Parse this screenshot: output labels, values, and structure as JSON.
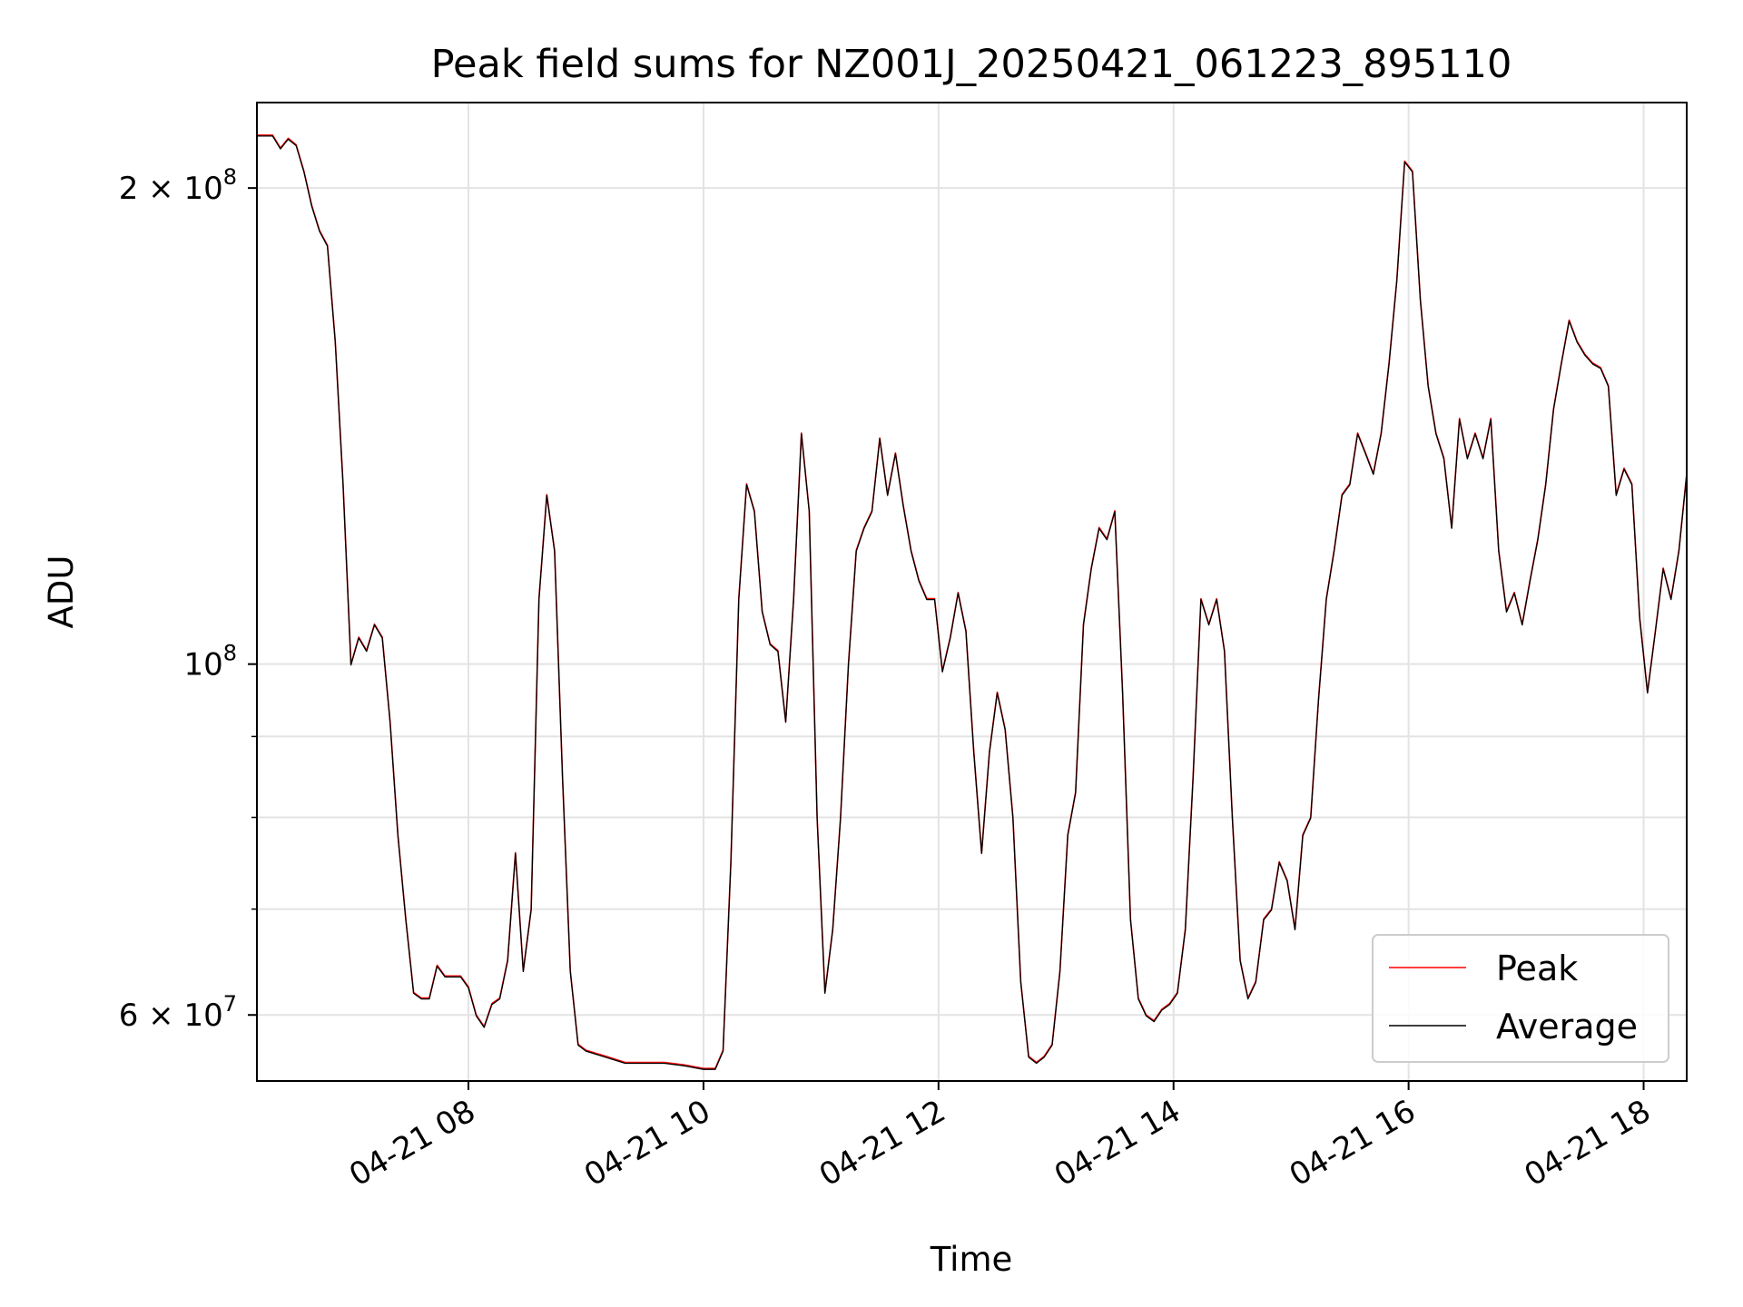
{
  "chart_data": {
    "type": "line",
    "title": "Peak field sums for NZ001J_20250421_061223_895110",
    "xlabel": "Time",
    "ylabel": "ADU",
    "y_scale": "log",
    "ylim": [
      54500000,
      226500000
    ],
    "xlim": [
      "2025-04-21 06:12",
      "2025-04-21 18:22"
    ],
    "x_ticks": [
      "04-21 08",
      "04-21 10",
      "04-21 12",
      "04-21 14",
      "04-21 16",
      "04-21 18"
    ],
    "y_ticks": [
      {
        "value": 60000000,
        "label_base": "6 × 10",
        "label_exp": "7"
      },
      {
        "value": 100000000,
        "label_base": "10",
        "label_exp": "8"
      },
      {
        "value": 200000000,
        "label_base": "2 × 10",
        "label_exp": "8"
      }
    ],
    "y_minor_ticks": [
      70000000,
      80000000,
      90000000
    ],
    "grid": true,
    "legend_position": "bottom-right",
    "colors": {
      "peak": "#ff0000",
      "average": "#000000"
    },
    "series": [
      {
        "name": "Peak",
        "color": "#ff0000",
        "points": [
          [
            "06:12",
            216000000
          ],
          [
            "06:20",
            216000000
          ],
          [
            "06:24",
            212000000
          ],
          [
            "06:28",
            215000000
          ],
          [
            "06:32",
            213000000
          ],
          [
            "06:36",
            205000000
          ],
          [
            "06:40",
            195000000
          ],
          [
            "06:44",
            188000000
          ],
          [
            "06:48",
            184000000
          ],
          [
            "06:52",
            160000000
          ],
          [
            "06:56",
            130000000
          ],
          [
            "07:00",
            100000000
          ],
          [
            "07:04",
            104000000
          ],
          [
            "07:08",
            102000000
          ],
          [
            "07:12",
            106000000
          ],
          [
            "07:16",
            104000000
          ],
          [
            "07:20",
            92000000
          ],
          [
            "07:24",
            78000000
          ],
          [
            "07:28",
            69000000
          ],
          [
            "07:32",
            62000000
          ],
          [
            "07:36",
            61500000
          ],
          [
            "07:40",
            61500000
          ],
          [
            "07:44",
            64500000
          ],
          [
            "07:48",
            63500000
          ],
          [
            "07:52",
            63500000
          ],
          [
            "07:56",
            63500000
          ],
          [
            "08:00",
            62500000
          ],
          [
            "08:04",
            60000000
          ],
          [
            "08:08",
            59000000
          ],
          [
            "08:12",
            61000000
          ],
          [
            "08:16",
            61500000
          ],
          [
            "08:20",
            65000000
          ],
          [
            "08:24",
            76000000
          ],
          [
            "08:28",
            64000000
          ],
          [
            "08:32",
            70000000
          ],
          [
            "08:36",
            110000000
          ],
          [
            "08:40",
            128000000
          ],
          [
            "08:44",
            118000000
          ],
          [
            "08:48",
            85000000
          ],
          [
            "08:52",
            64000000
          ],
          [
            "08:56",
            57500000
          ],
          [
            "09:00",
            57000000
          ],
          [
            "09:10",
            56500000
          ],
          [
            "09:20",
            56000000
          ],
          [
            "09:30",
            56000000
          ],
          [
            "09:40",
            56000000
          ],
          [
            "09:50",
            55800000
          ],
          [
            "10:00",
            55500000
          ],
          [
            "10:06",
            55500000
          ],
          [
            "10:10",
            57000000
          ],
          [
            "10:14",
            75000000
          ],
          [
            "10:18",
            110000000
          ],
          [
            "10:22",
            130000000
          ],
          [
            "10:26",
            125000000
          ],
          [
            "10:30",
            108000000
          ],
          [
            "10:34",
            103000000
          ],
          [
            "10:38",
            102000000
          ],
          [
            "10:42",
            92000000
          ],
          [
            "10:46",
            110000000
          ],
          [
            "10:50",
            140000000
          ],
          [
            "10:54",
            125000000
          ],
          [
            "10:58",
            80000000
          ],
          [
            "11:02",
            62000000
          ],
          [
            "11:06",
            68000000
          ],
          [
            "11:10",
            80000000
          ],
          [
            "11:14",
            100000000
          ],
          [
            "11:18",
            118000000
          ],
          [
            "11:22",
            122000000
          ],
          [
            "11:26",
            125000000
          ],
          [
            "11:30",
            139000000
          ],
          [
            "11:34",
            128000000
          ],
          [
            "11:38",
            136000000
          ],
          [
            "11:42",
            126000000
          ],
          [
            "11:46",
            118000000
          ],
          [
            "11:50",
            113000000
          ],
          [
            "11:54",
            110000000
          ],
          [
            "11:58",
            110000000
          ],
          [
            "12:02",
            99000000
          ],
          [
            "12:06",
            104000000
          ],
          [
            "12:10",
            111000000
          ],
          [
            "12:14",
            105000000
          ],
          [
            "12:18",
            88000000
          ],
          [
            "12:22",
            76000000
          ],
          [
            "12:26",
            88000000
          ],
          [
            "12:30",
            96000000
          ],
          [
            "12:34",
            91000000
          ],
          [
            "12:38",
            80000000
          ],
          [
            "12:42",
            63000000
          ],
          [
            "12:46",
            56500000
          ],
          [
            "12:50",
            56000000
          ],
          [
            "12:54",
            56500000
          ],
          [
            "12:58",
            57500000
          ],
          [
            "13:02",
            64000000
          ],
          [
            "13:06",
            78000000
          ],
          [
            "13:10",
            83000000
          ],
          [
            "13:14",
            106000000
          ],
          [
            "13:18",
            115000000
          ],
          [
            "13:22",
            122000000
          ],
          [
            "13:26",
            120000000
          ],
          [
            "13:30",
            125000000
          ],
          [
            "13:34",
            96000000
          ],
          [
            "13:38",
            69000000
          ],
          [
            "13:42",
            61500000
          ],
          [
            "13:46",
            60000000
          ],
          [
            "13:50",
            59500000
          ],
          [
            "13:54",
            60500000
          ],
          [
            "13:58",
            61000000
          ],
          [
            "14:02",
            62000000
          ],
          [
            "14:06",
            68000000
          ],
          [
            "14:10",
            85000000
          ],
          [
            "14:14",
            110000000
          ],
          [
            "14:18",
            106000000
          ],
          [
            "14:22",
            110000000
          ],
          [
            "14:26",
            102000000
          ],
          [
            "14:30",
            80000000
          ],
          [
            "14:34",
            65000000
          ],
          [
            "14:38",
            61500000
          ],
          [
            "14:42",
            63000000
          ],
          [
            "14:46",
            69000000
          ],
          [
            "14:50",
            70000000
          ],
          [
            "14:54",
            75000000
          ],
          [
            "14:58",
            73000000
          ],
          [
            "15:02",
            68000000
          ],
          [
            "15:06",
            78000000
          ],
          [
            "15:10",
            80000000
          ],
          [
            "15:14",
            95000000
          ],
          [
            "15:18",
            110000000
          ],
          [
            "15:22",
            118000000
          ],
          [
            "15:26",
            128000000
          ],
          [
            "15:30",
            130000000
          ],
          [
            "15:34",
            140000000
          ],
          [
            "15:38",
            136000000
          ],
          [
            "15:42",
            132000000
          ],
          [
            "15:46",
            140000000
          ],
          [
            "15:50",
            155000000
          ],
          [
            "15:54",
            175000000
          ],
          [
            "15:58",
            208000000
          ],
          [
            "16:02",
            205000000
          ],
          [
            "16:06",
            170000000
          ],
          [
            "16:10",
            150000000
          ],
          [
            "16:14",
            140000000
          ],
          [
            "16:18",
            135000000
          ],
          [
            "16:22",
            122000000
          ],
          [
            "16:26",
            143000000
          ],
          [
            "16:30",
            135000000
          ],
          [
            "16:34",
            140000000
          ],
          [
            "16:38",
            135000000
          ],
          [
            "16:42",
            143000000
          ],
          [
            "16:46",
            118000000
          ],
          [
            "16:50",
            108000000
          ],
          [
            "16:54",
            111000000
          ],
          [
            "16:58",
            106000000
          ],
          [
            "17:02",
            113000000
          ],
          [
            "17:06",
            120000000
          ],
          [
            "17:10",
            130000000
          ],
          [
            "17:14",
            145000000
          ],
          [
            "17:18",
            155000000
          ],
          [
            "17:22",
            165000000
          ],
          [
            "17:26",
            160000000
          ],
          [
            "17:30",
            157000000
          ],
          [
            "17:34",
            155000000
          ],
          [
            "17:38",
            154000000
          ],
          [
            "17:42",
            150000000
          ],
          [
            "17:46",
            128000000
          ],
          [
            "17:50",
            133000000
          ],
          [
            "17:54",
            130000000
          ],
          [
            "17:58",
            107000000
          ],
          [
            "18:02",
            96000000
          ],
          [
            "18:06",
            105000000
          ],
          [
            "18:10",
            115000000
          ],
          [
            "18:14",
            110000000
          ],
          [
            "18:18",
            118000000
          ],
          [
            "18:22",
            132000000
          ]
        ]
      },
      {
        "name": "Average",
        "color": "#000000"
      }
    ]
  }
}
